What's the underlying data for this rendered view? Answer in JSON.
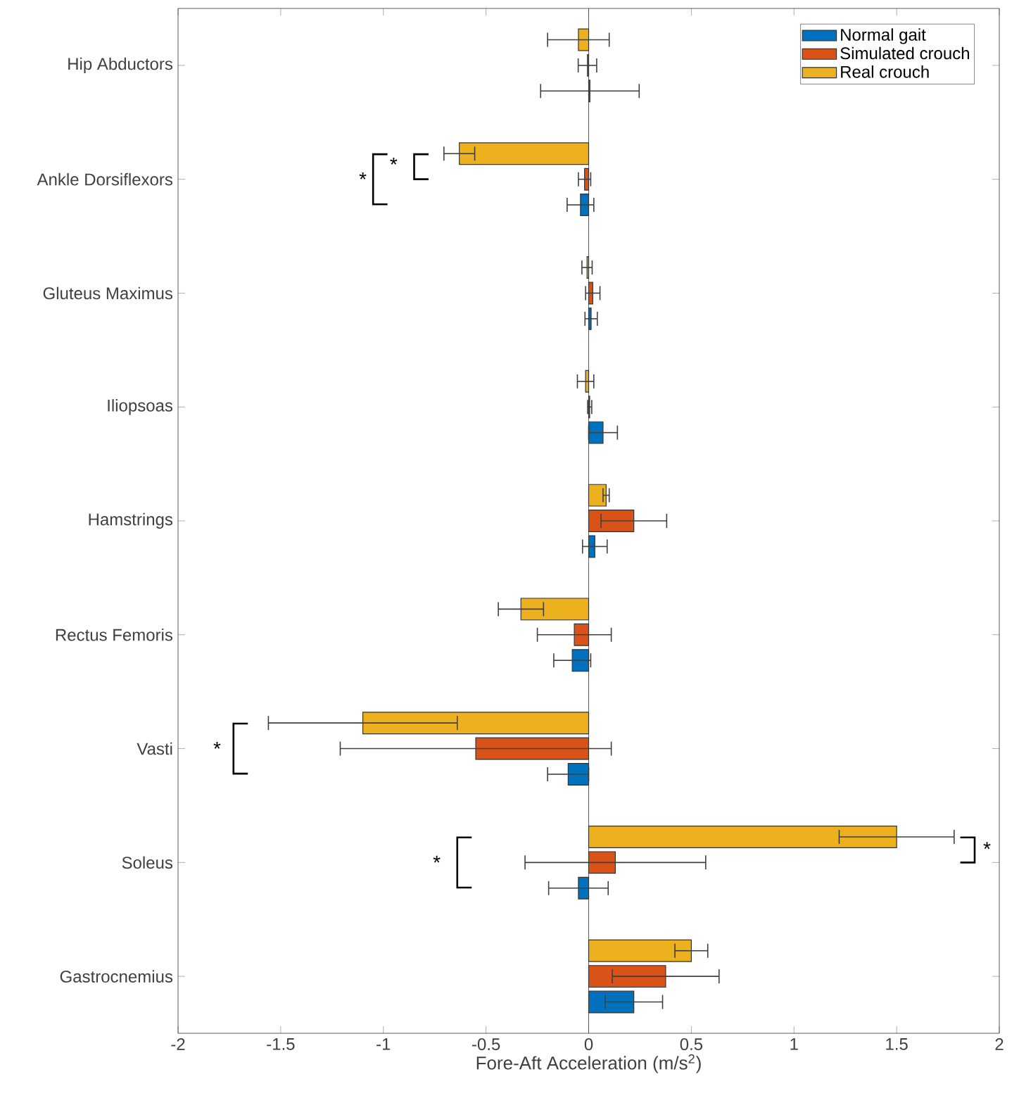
{
  "chart_data": {
    "type": "bar",
    "orientation": "horizontal",
    "xlabel": "Fore-Aft Acceleration (m/s$^{2}$)",
    "categories": [
      "Hip Abductors",
      "Ankle Dorsiflexors",
      "Gluteus Maximus",
      "Iliopsoas",
      "Hamstrings",
      "Rectus Femoris",
      "Vasti",
      "Soleus",
      "Gastrocnemius"
    ],
    "series": [
      {
        "name": "Normal gait",
        "color": "#0072bd",
        "values": [
          0.006,
          -0.04,
          0.012,
          0.07,
          0.03,
          -0.08,
          -0.1,
          -0.05,
          0.22
        ],
        "errors": [
          0.24,
          0.065,
          0.03,
          0.07,
          0.06,
          0.09,
          0.1,
          0.145,
          0.14
        ]
      },
      {
        "name": "Simulated crouch",
        "color": "#d95319",
        "values": [
          -0.006,
          -0.02,
          0.02,
          0.005,
          0.22,
          -0.07,
          -0.55,
          0.13,
          0.375
        ],
        "errors": [
          0.045,
          0.03,
          0.035,
          0.01,
          0.16,
          0.18,
          0.66,
          0.44,
          0.26
        ]
      },
      {
        "name": "Real crouch",
        "color": "#edb120",
        "values": [
          -0.05,
          -0.63,
          -0.008,
          -0.015,
          0.085,
          -0.33,
          -1.1,
          1.5,
          0.5
        ],
        "errors": [
          0.15,
          0.075,
          0.025,
          0.04,
          0.015,
          0.11,
          0.46,
          0.28,
          0.08
        ]
      }
    ],
    "xlim": [
      -2,
      2
    ],
    "xticks": [
      -2,
      -1.5,
      -1,
      -0.5,
      0,
      0.5,
      1,
      1.5,
      2
    ],
    "legend": "top right",
    "annotations": [
      "*",
      "*",
      "*",
      "*",
      "*"
    ]
  }
}
